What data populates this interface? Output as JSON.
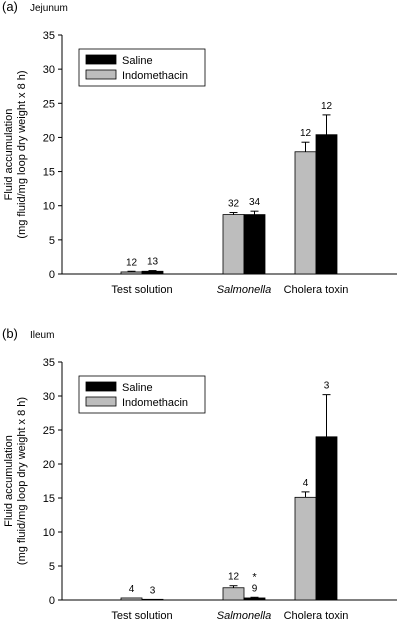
{
  "colors": {
    "saline": "#000000",
    "indomethacin": "#bdbdbd",
    "axis": "#000000",
    "bar_outline": "#000000"
  },
  "chart_data": [
    {
      "panel_label": "(a)",
      "title": "Jejunum",
      "type": "bar",
      "categories": [
        "Test solution",
        "Salmonella",
        "Cholera toxin"
      ],
      "ylabel_line1": "Fluid accumulation",
      "ylabel_line2": "(mg fluid/mg loop dry weight x 8 h)",
      "ylim": [
        0,
        35
      ],
      "yticks": [
        "0",
        "5",
        "10",
        "15",
        "20",
        "25",
        "30",
        "35"
      ],
      "legend_position": "top-left",
      "series": [
        {
          "name": "Indomethacin",
          "values": [
            0.3,
            8.7,
            17.9
          ],
          "errors": [
            0.1,
            0.3,
            1.4
          ],
          "n_labels": [
            "12",
            "32",
            "12"
          ]
        },
        {
          "name": "Saline",
          "values": [
            0.4,
            8.7,
            20.4
          ],
          "errors": [
            0.1,
            0.5,
            2.9
          ],
          "n_labels": [
            "13",
            "34",
            "12"
          ]
        }
      ],
      "significance": [
        [
          "",
          "",
          ""
        ],
        [
          "",
          "",
          ""
        ]
      ]
    },
    {
      "panel_label": "(b)",
      "title": "Ileum",
      "type": "bar",
      "categories": [
        "Test solution",
        "Salmonella",
        "Cholera toxin"
      ],
      "ylabel_line1": "Fluid accumulation",
      "ylabel_line2": "(mg fluid/mg loop dry weight x 8 h)",
      "ylim": [
        0,
        35
      ],
      "yticks": [
        "0",
        "5",
        "10",
        "15",
        "20",
        "25",
        "30",
        "35"
      ],
      "legend_position": "top-left",
      "series": [
        {
          "name": "Indomethacin",
          "values": [
            0.3,
            1.8,
            15.1
          ],
          "errors": [
            0.0,
            0.3,
            0.8
          ],
          "n_labels": [
            "4",
            "12",
            "4"
          ]
        },
        {
          "name": "Saline",
          "values": [
            0.1,
            0.3,
            24.0
          ],
          "errors": [
            0.0,
            0.1,
            6.2
          ],
          "n_labels": [
            "3",
            "9",
            "3"
          ]
        }
      ],
      "significance": [
        [
          "",
          "",
          ""
        ],
        [
          "",
          "*",
          ""
        ]
      ]
    }
  ]
}
